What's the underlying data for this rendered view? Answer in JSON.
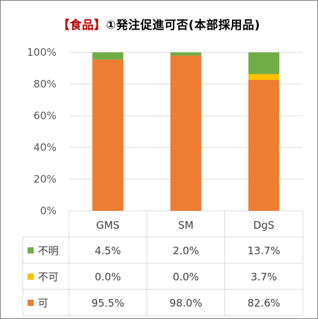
{
  "title": {
    "highlight": "【食品】",
    "rest": "①発注促進可否(本部採用品)"
  },
  "chart_data": {
    "type": "bar",
    "stacked": true,
    "categories": [
      "GMS",
      "SM",
      "DgS"
    ],
    "series": [
      {
        "name": "可",
        "values": [
          95.5,
          98.0,
          82.6
        ],
        "labels": [
          "95.5%",
          "98.0%",
          "82.6%"
        ],
        "color": "#ed7d31"
      },
      {
        "name": "不可",
        "values": [
          0.0,
          0.0,
          3.7
        ],
        "labels": [
          "0.0%",
          "0.0%",
          "3.7%"
        ],
        "color": "#ffc000"
      },
      {
        "name": "不明",
        "values": [
          4.5,
          2.0,
          13.7
        ],
        "labels": [
          "4.5%",
          "2.0%",
          "13.7%"
        ],
        "color": "#70ad47"
      }
    ],
    "table_row_order": [
      "不明",
      "不可",
      "可"
    ],
    "ylim": [
      0,
      100
    ],
    "yticks": [
      "0%",
      "20%",
      "40%",
      "60%",
      "80%",
      "100%"
    ],
    "grid": true,
    "data_table": true
  },
  "colors": {
    "grid": "#d9d9d9",
    "axis_text": "#595959",
    "title_accent": "#c00000"
  }
}
